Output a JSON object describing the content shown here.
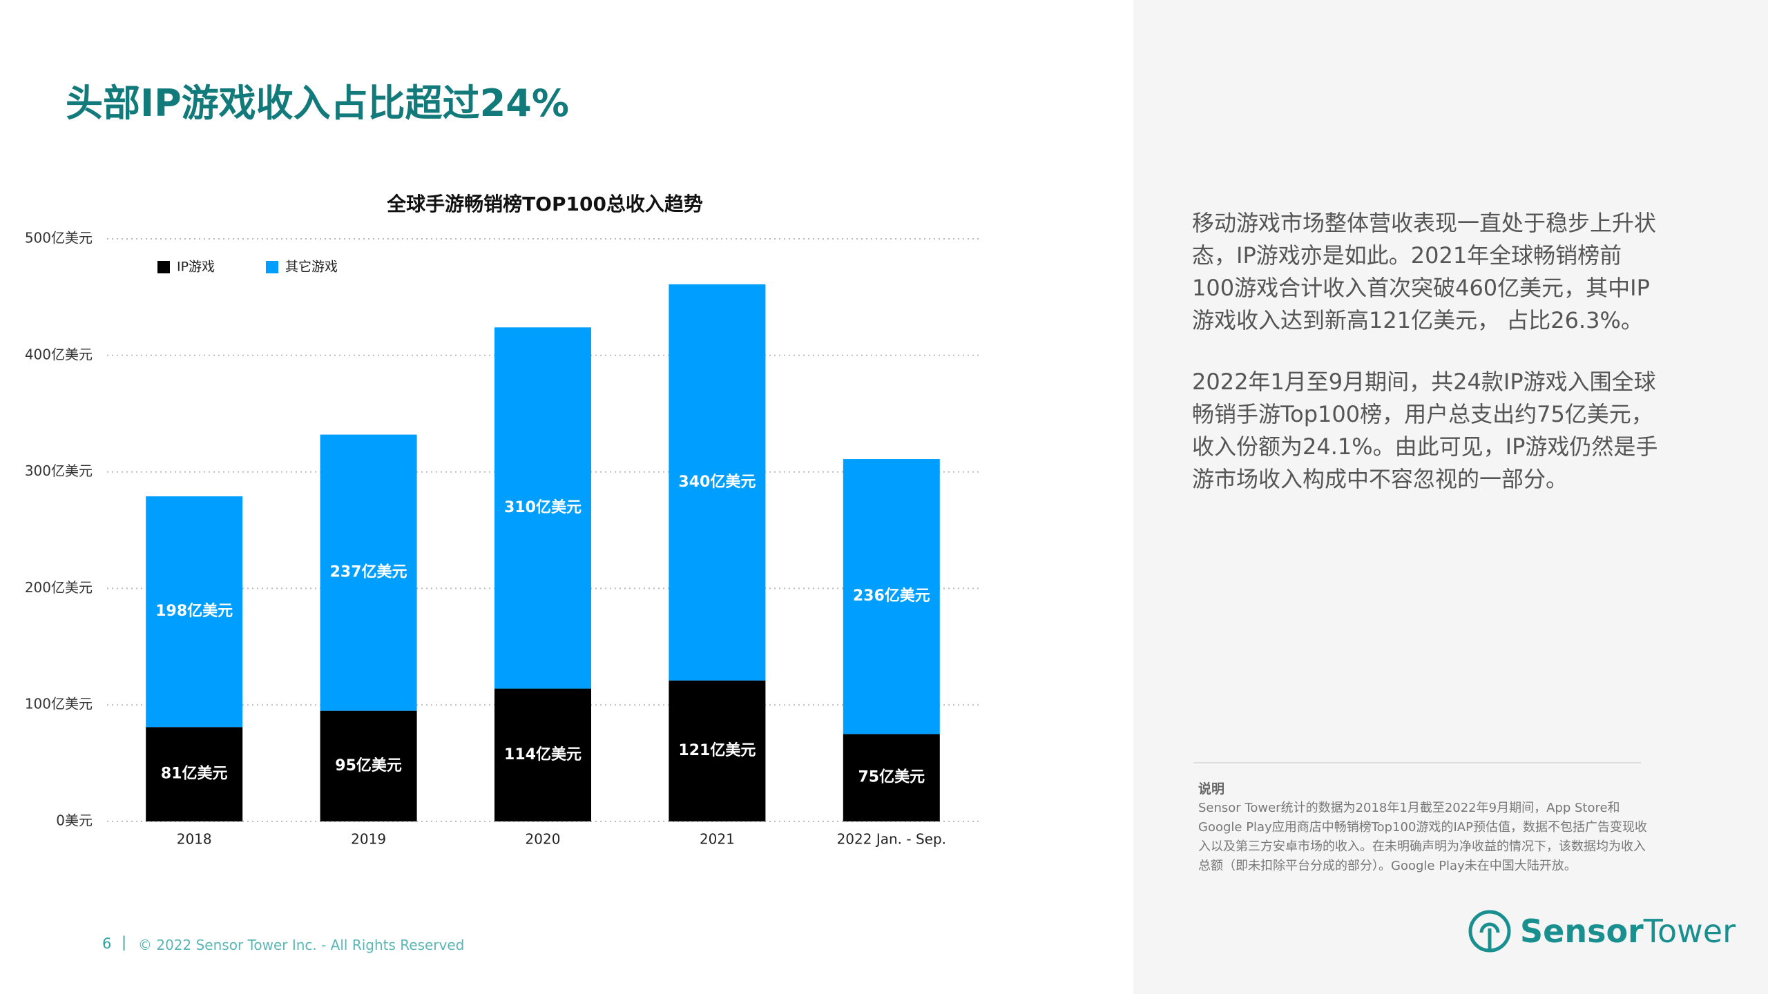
{
  "header": {
    "title": "头部IP游戏收入占比超过24%"
  },
  "chart_data": {
    "type": "stacked_bar",
    "title": "全球手游畅销榜TOP100总收入趋势",
    "categories": [
      "2018",
      "2019",
      "2020",
      "2021",
      "2022 Jan. - Sep."
    ],
    "series": [
      {
        "name": "IP游戏",
        "color": "#000000",
        "values": [
          81,
          95,
          114,
          121,
          75
        ],
        "value_labels": [
          "81亿美元",
          "95亿美元",
          "114亿美元",
          "121亿美元",
          "75亿美元"
        ]
      },
      {
        "name": "其它游戏",
        "color": "#009fff",
        "values": [
          198,
          237,
          310,
          340,
          236
        ],
        "value_labels": [
          "198亿美元",
          "237亿美元",
          "310亿美元",
          "340亿美元",
          "236亿美元"
        ]
      }
    ],
    "ylim": [
      0,
      500
    ],
    "yticks": [
      {
        "value": 0,
        "label": "0美元"
      },
      {
        "value": 100,
        "label": "100亿美元"
      },
      {
        "value": 200,
        "label": "200亿美元"
      },
      {
        "value": 300,
        "label": "300亿美元"
      },
      {
        "value": 400,
        "label": "400亿美元"
      },
      {
        "value": 500,
        "label": "500亿美元"
      }
    ],
    "grid": true,
    "legend": "top-left"
  },
  "sidebar": {
    "paragraphs": [
      "移动游戏市场整体营收表现一直处于稳步上升状态，IP游戏亦是如此。2021年全球畅销榜前100游戏合计收入首次突破460亿美元，其中IP游戏收入达到新高121亿美元， 占比26.3%。",
      "2022年1月至9月期间，共24款IP游戏入围全球畅销手游Top100榜，用户总支出约75亿美元，收入份额为24.1%。由此可见，IP游戏仍然是手游市场收入构成中不容忽视的一部分。"
    ],
    "note_title": "说明",
    "note": "Sensor Tower统计的数据为2018年1月截至2022年9月期间，App Store和Google Play应用商店中畅销榜Top100游戏的IAP预估值，数据不包括广告变现收入以及第三方安卓市场的收入。在未明确声明为净收益的情况下，该数据均为收入总额（即未扣除平台分成的部分）。Google Play未在中国大陆开放。"
  },
  "footer": {
    "page": "6",
    "separator": "|",
    "copyright": "© 2022 Sensor Tower Inc. - All Rights Reserved"
  },
  "logo": {
    "part1": "Sensor",
    "part2": "Tower"
  }
}
